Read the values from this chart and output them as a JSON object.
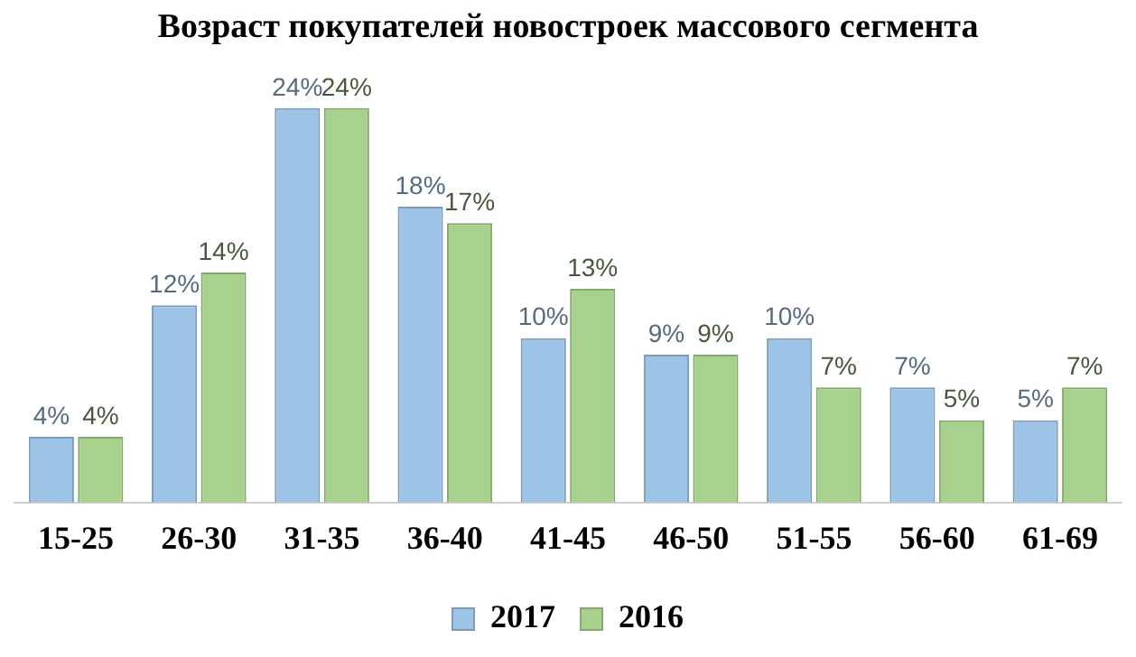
{
  "chart_data": {
    "type": "bar",
    "title": "Возраст покупателей новостроек массового сегмента",
    "categories": [
      "15-25",
      "26-30",
      "31-35",
      "36-40",
      "41-45",
      "46-50",
      "51-55",
      "56-60",
      "61-69"
    ],
    "series": [
      {
        "name": "2017",
        "color": "#9dc3e6",
        "values": [
          4,
          12,
          24,
          18,
          10,
          9,
          10,
          7,
          5
        ],
        "value_labels": [
          "4%",
          "12%",
          "24%",
          "18%",
          "10%",
          "9%",
          "10%",
          "7%",
          "5%"
        ]
      },
      {
        "name": "2016",
        "color": "#a9d18e",
        "values": [
          4,
          14,
          24,
          17,
          13,
          9,
          7,
          5,
          7
        ],
        "value_labels": [
          "4%",
          "14%",
          "24%",
          "17%",
          "13%",
          "9%",
          "7%",
          "5%",
          "7%"
        ]
      }
    ],
    "legend": "bottom",
    "grid": false,
    "tick_labels": "x"
  }
}
